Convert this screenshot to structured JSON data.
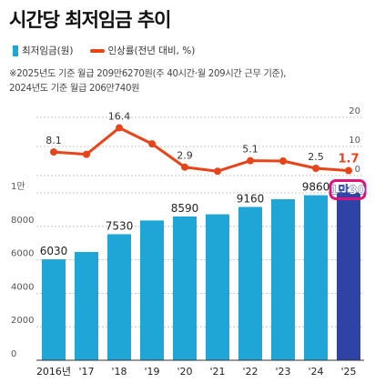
{
  "title": "시간당 최저임금 추이",
  "legend": {
    "bar_label": "최저임금(원)",
    "line_label": "인상률(전년 대비, %)"
  },
  "notes": [
    "※2025년도 기준 월급 209만6270원(주 40시간·월 209시간 근무 기준),",
    "  2024년도 기준 월급 206만740원"
  ],
  "colors": {
    "bar": "#1fa6d6",
    "bar_highlight": "#2e43a6",
    "line": "#e8441a",
    "highlight_marker": "#e0127c"
  },
  "chart_data": {
    "type": "bar",
    "categories": [
      "2016년",
      "'17",
      "'18",
      "'19",
      "'20",
      "'21",
      "'22",
      "'23",
      "'24",
      "'25"
    ],
    "series": [
      {
        "name": "최저임금(원)",
        "type": "bar",
        "values": [
          6030,
          6470,
          7530,
          8350,
          8590,
          8720,
          9160,
          9620,
          9860,
          10030
        ],
        "data_labels": [
          "6030",
          "",
          "7530",
          "",
          "8590",
          "",
          "9160",
          "",
          "9860",
          "1만30"
        ]
      },
      {
        "name": "인상률(전년 대비, %)",
        "type": "line",
        "values": [
          8.1,
          7.3,
          16.4,
          10.9,
          2.9,
          1.5,
          5.1,
          5.0,
          2.5,
          1.7
        ],
        "data_labels": [
          "8.1",
          "",
          "16.4",
          "",
          "2.9",
          "",
          "5.1",
          "",
          "2.5",
          "1.7"
        ]
      }
    ],
    "left_axis": {
      "ticks": [
        "0",
        "2000",
        "4000",
        "6000",
        "8000",
        "1만"
      ],
      "ylim": [
        0,
        10000
      ]
    },
    "right_axis": {
      "ticks": [
        "0",
        "10",
        "20"
      ],
      "ylim": [
        0,
        20
      ]
    },
    "highlight_index": 9
  }
}
